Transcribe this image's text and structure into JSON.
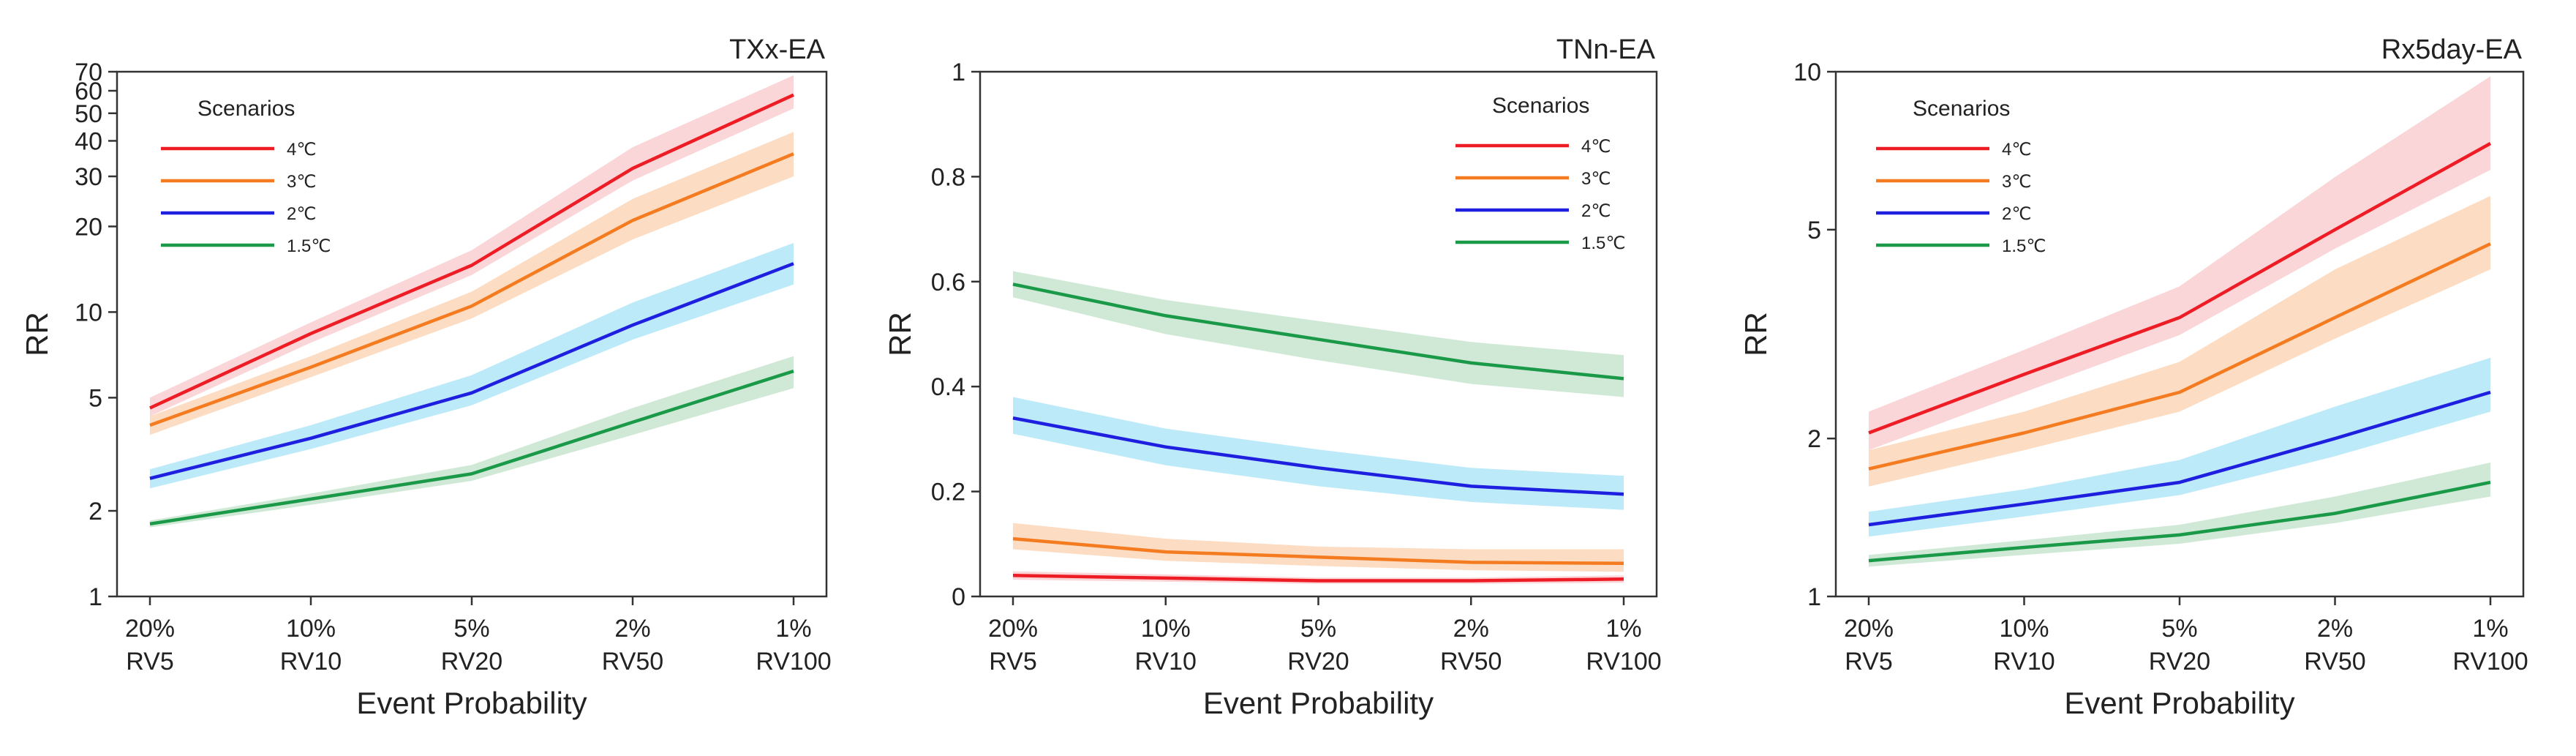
{
  "chart_data": [
    {
      "type": "line",
      "title": "TXx-EA",
      "xlabel": "Event Probability",
      "ylabel": "RR",
      "yscale": "log",
      "ylim": [
        1,
        70
      ],
      "yticks": [
        1,
        2,
        5,
        10,
        20,
        30,
        40,
        50,
        60,
        70
      ],
      "categories": [
        {
          "pct": "20%",
          "rv": "RV5"
        },
        {
          "pct": "10%",
          "rv": "RV10"
        },
        {
          "pct": "5%",
          "rv": "RV20"
        },
        {
          "pct": "2%",
          "rv": "RV50"
        },
        {
          "pct": "1%",
          "rv": "RV100"
        }
      ],
      "legend": {
        "title": "Scenarios",
        "position": "top-left"
      },
      "series": [
        {
          "name": "4℃",
          "color": "#ee1c25",
          "band_color": "#f8c8cb",
          "values": [
            4.6,
            8.4,
            14.6,
            32,
            58
          ],
          "lower": [
            4.3,
            7.8,
            13.5,
            29,
            52
          ],
          "upper": [
            5.0,
            9.2,
            16.5,
            38,
            68
          ]
        },
        {
          "name": "3℃",
          "color": "#f47b20",
          "band_color": "#fbd0ad",
          "values": [
            4.0,
            6.4,
            10.5,
            21,
            36
          ],
          "lower": [
            3.7,
            5.9,
            9.5,
            18,
            30
          ],
          "upper": [
            4.3,
            7.0,
            11.8,
            25,
            43
          ]
        },
        {
          "name": "2℃",
          "color": "#1f1fe0",
          "band_color": "#a6e3f7",
          "values": [
            2.6,
            3.6,
            5.2,
            9.0,
            14.8
          ],
          "lower": [
            2.4,
            3.3,
            4.7,
            8.0,
            12.5
          ],
          "upper": [
            2.8,
            4.0,
            6.0,
            10.8,
            17.5
          ]
        },
        {
          "name": "1.5℃",
          "color": "#1a9a48",
          "band_color": "#bfe2c8",
          "values": [
            1.8,
            2.2,
            2.7,
            4.1,
            6.2
          ],
          "lower": [
            1.75,
            2.1,
            2.55,
            3.7,
            5.4
          ],
          "upper": [
            1.85,
            2.3,
            2.9,
            4.6,
            7.0
          ]
        }
      ]
    },
    {
      "type": "line",
      "title": "TNn-EA",
      "xlabel": "Event Probability",
      "ylabel": "RR",
      "yscale": "linear",
      "ylim": [
        0,
        1
      ],
      "yticks": [
        0,
        0.2,
        0.4,
        0.6,
        0.8,
        1
      ],
      "categories": [
        {
          "pct": "20%",
          "rv": "RV5"
        },
        {
          "pct": "10%",
          "rv": "RV10"
        },
        {
          "pct": "5%",
          "rv": "RV20"
        },
        {
          "pct": "2%",
          "rv": "RV50"
        },
        {
          "pct": "1%",
          "rv": "RV100"
        }
      ],
      "legend": {
        "title": "Scenarios",
        "position": "top-right"
      },
      "series": [
        {
          "name": "4℃",
          "color": "#ee1c25",
          "band_color": "#f8c8cb",
          "values": [
            0.04,
            0.035,
            0.03,
            0.03,
            0.033
          ],
          "lower": [
            0.032,
            0.028,
            0.024,
            0.024,
            0.026
          ],
          "upper": [
            0.048,
            0.042,
            0.036,
            0.036,
            0.04
          ]
        },
        {
          "name": "3℃",
          "color": "#f47b20",
          "band_color": "#fbd0ad",
          "values": [
            0.11,
            0.085,
            0.075,
            0.065,
            0.063
          ],
          "lower": [
            0.09,
            0.068,
            0.058,
            0.05,
            0.047
          ],
          "upper": [
            0.14,
            0.11,
            0.095,
            0.09,
            0.09
          ]
        },
        {
          "name": "2℃",
          "color": "#1f1fe0",
          "band_color": "#a6e3f7",
          "values": [
            0.34,
            0.285,
            0.245,
            0.21,
            0.195
          ],
          "lower": [
            0.31,
            0.25,
            0.21,
            0.18,
            0.165
          ],
          "upper": [
            0.38,
            0.32,
            0.28,
            0.245,
            0.23
          ]
        },
        {
          "name": "1.5℃",
          "color": "#1a9a48",
          "band_color": "#bfe2c8",
          "values": [
            0.595,
            0.535,
            0.49,
            0.445,
            0.415
          ],
          "lower": [
            0.57,
            0.5,
            0.45,
            0.405,
            0.38
          ],
          "upper": [
            0.62,
            0.565,
            0.525,
            0.485,
            0.46
          ]
        }
      ]
    },
    {
      "type": "line",
      "title": "Rx5day-EA",
      "xlabel": "Event Probability",
      "ylabel": "RR",
      "yscale": "log",
      "ylim": [
        1,
        10
      ],
      "yticks": [
        1,
        2,
        5,
        10
      ],
      "categories": [
        {
          "pct": "20%",
          "rv": "RV5"
        },
        {
          "pct": "10%",
          "rv": "RV10"
        },
        {
          "pct": "5%",
          "rv": "RV20"
        },
        {
          "pct": "2%",
          "rv": "RV50"
        },
        {
          "pct": "1%",
          "rv": "RV100"
        }
      ],
      "legend": {
        "title": "Scenarios",
        "position": "top-left"
      },
      "series": [
        {
          "name": "4℃",
          "color": "#ee1c25",
          "band_color": "#f8c8cb",
          "values": [
            2.05,
            2.65,
            3.4,
            5.0,
            7.3
          ],
          "lower": [
            1.9,
            2.45,
            3.15,
            4.6,
            6.5
          ],
          "upper": [
            2.25,
            2.95,
            3.9,
            6.3,
            9.8
          ]
        },
        {
          "name": "3℃",
          "color": "#f47b20",
          "band_color": "#fbd0ad",
          "values": [
            1.75,
            2.05,
            2.45,
            3.4,
            4.7
          ],
          "lower": [
            1.62,
            1.9,
            2.25,
            3.1,
            4.2
          ],
          "upper": [
            1.9,
            2.25,
            2.8,
            4.2,
            5.8
          ]
        },
        {
          "name": "2℃",
          "color": "#1f1fe0",
          "band_color": "#a6e3f7",
          "values": [
            1.37,
            1.5,
            1.65,
            2.0,
            2.45
          ],
          "lower": [
            1.3,
            1.42,
            1.56,
            1.85,
            2.25
          ],
          "upper": [
            1.45,
            1.6,
            1.82,
            2.3,
            2.85
          ]
        },
        {
          "name": "1.5℃",
          "color": "#1a9a48",
          "band_color": "#bfe2c8",
          "values": [
            1.17,
            1.24,
            1.31,
            1.44,
            1.65
          ],
          "lower": [
            1.14,
            1.2,
            1.26,
            1.38,
            1.55
          ],
          "upper": [
            1.2,
            1.28,
            1.37,
            1.55,
            1.8
          ]
        }
      ]
    }
  ]
}
